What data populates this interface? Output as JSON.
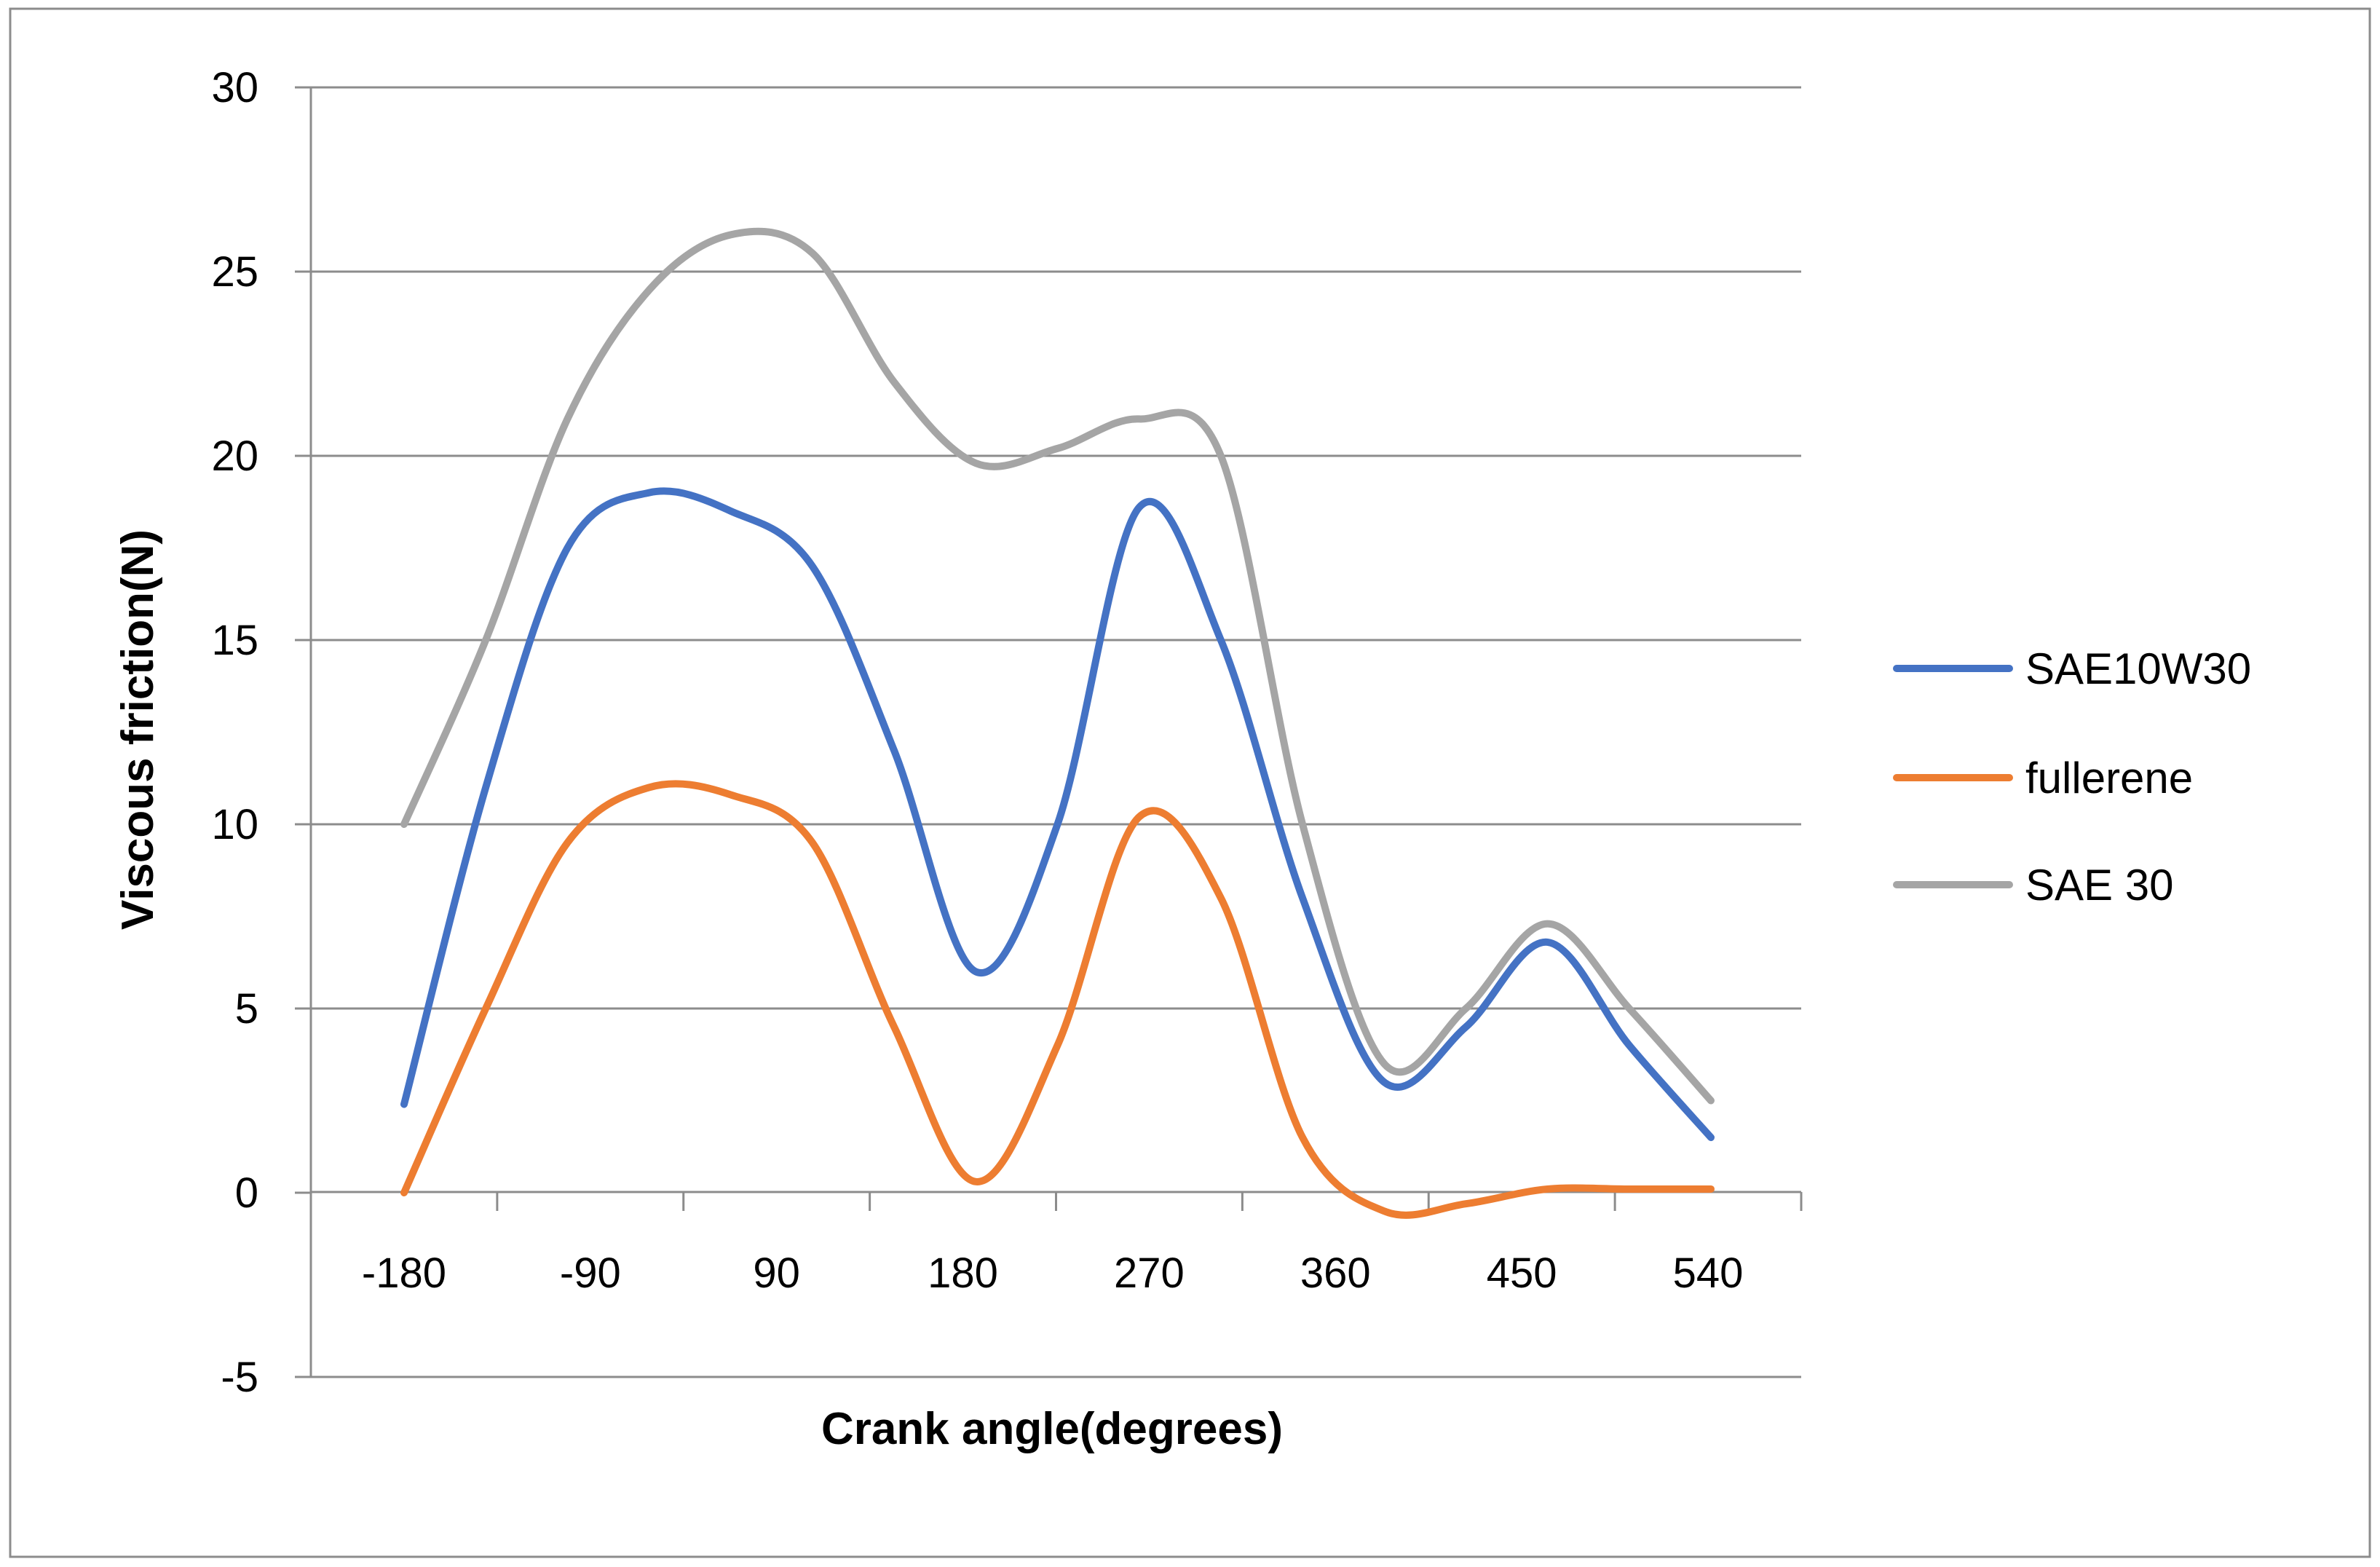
{
  "chart_data": {
    "type": "line",
    "title": "",
    "xlabel": "Crank angle(degrees)",
    "ylabel": "Viscous friction(N)",
    "categories": [
      "-180",
      "-90",
      "90",
      "180",
      "270",
      "360",
      "450",
      "540"
    ],
    "yticks": [
      "30",
      "25",
      "20",
      "15",
      "10",
      "5",
      "0",
      "-5"
    ],
    "ylim": [
      -5,
      30
    ],
    "ytick_values": [
      30,
      25,
      20,
      15,
      10,
      5,
      0,
      -5
    ],
    "grid": true,
    "legend_position": "right",
    "x": [
      -180,
      -135,
      -90,
      -45,
      0,
      45,
      90,
      135,
      180,
      225,
      270,
      315,
      360,
      405,
      450,
      495,
      540
    ],
    "series": [
      {
        "name": "SAE10W30",
        "color": "#4472C4",
        "values": [
          2.4,
          11.0,
          17.5,
          19.0,
          18.5,
          17.0,
          12.0,
          6.0,
          10.0,
          18.6,
          15.0,
          8.0,
          3.0,
          4.5,
          6.8,
          4.0,
          1.5
        ]
      },
      {
        "name": "fullerene",
        "color": "#ED7D31",
        "values": [
          0.0,
          5.0,
          9.5,
          11.0,
          10.8,
          9.5,
          4.5,
          0.3,
          4.0,
          10.2,
          8.0,
          1.5,
          -0.5,
          -0.3,
          0.1,
          0.1,
          0.1
        ]
      },
      {
        "name": "SAE 30",
        "color": "#A5A5A5",
        "values": [
          10.0,
          15.0,
          21.0,
          24.5,
          26.0,
          25.5,
          22.0,
          19.8,
          20.2,
          21.0,
          20.0,
          10.0,
          3.5,
          5.0,
          7.3,
          5.0,
          2.5
        ]
      }
    ]
  }
}
